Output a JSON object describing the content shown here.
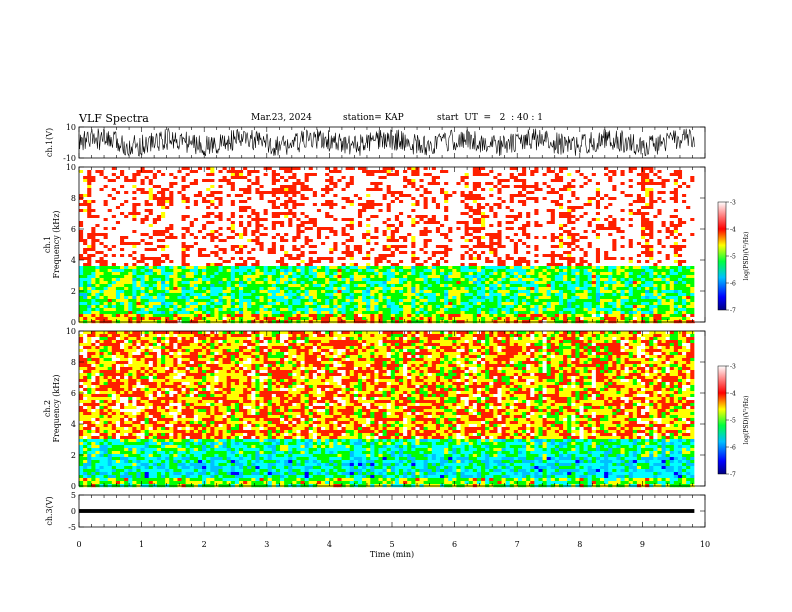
{
  "header": {
    "title": "VLF Spectra",
    "date": "Mar.23, 2024",
    "station": "station= KAP",
    "start": "start  UT  =   2  : 40 : 1"
  },
  "chart_data": [
    {
      "type": "line",
      "panel": "ch1-waveform",
      "ylabel": "ch.1(V)",
      "ylim": [
        -10,
        10
      ],
      "yticks": [
        10,
        -10
      ],
      "xlim": [
        0,
        10
      ],
      "data_end_min": 9.83,
      "color": "#000000",
      "description_values": "noisy voltage waveform oscillating roughly between -8 and 8 V"
    },
    {
      "type": "heatmap",
      "panel": "ch1-spectrogram",
      "ylabel": "ch.1  Frequency  (kHz)",
      "ylim": [
        0,
        10
      ],
      "yticks": [
        0,
        2,
        4,
        6,
        8,
        10
      ],
      "xlim": [
        0,
        10
      ],
      "data_end_min": 9.83,
      "colorbar": {
        "label": "log(PSD)(V²/Hz)",
        "range": [
          -7,
          -3
        ],
        "ticks": [
          -3,
          -4,
          -5,
          -6,
          -7
        ]
      },
      "bands": [
        {
          "from_khz": 0,
          "to_khz": 0.6,
          "level": -4.2
        },
        {
          "from_khz": 0.6,
          "to_khz": 3.6,
          "level": -4.8
        },
        {
          "from_khz": 3.6,
          "to_khz": 10,
          "level": -3.3
        }
      ]
    },
    {
      "type": "heatmap",
      "panel": "ch2-spectrogram",
      "ylabel": "ch.2  Frequency  (kHz)",
      "ylim": [
        0,
        10
      ],
      "yticks": [
        0,
        2,
        4,
        6,
        8,
        10
      ],
      "xlim": [
        0,
        10
      ],
      "data_end_min": 9.83,
      "colorbar": {
        "label": "log(PSD)(V²/Hz)",
        "range": [
          -7,
          -3
        ],
        "ticks": [
          -3,
          -4,
          -5,
          -6,
          -7
        ]
      },
      "bands": [
        {
          "from_khz": 0,
          "to_khz": 0.6,
          "level": -4.6
        },
        {
          "from_khz": 0.6,
          "to_khz": 1.9,
          "level": -5.3
        },
        {
          "from_khz": 1.9,
          "to_khz": 3.0,
          "level": -5.0
        },
        {
          "from_khz": 3.0,
          "to_khz": 10,
          "level": -4.0
        }
      ]
    },
    {
      "type": "line",
      "panel": "ch3-waveform",
      "ylabel": "ch.3(V)",
      "ylim": [
        -5,
        5
      ],
      "yticks": [
        5,
        0,
        -5
      ],
      "xlim": [
        0,
        10
      ],
      "data_end_min": 9.83,
      "values_band": [
        -0.6,
        0.6
      ],
      "color": "#000000"
    }
  ],
  "x_axis": {
    "label": "Time  (min)",
    "ticks": [
      0,
      1,
      2,
      3,
      4,
      5,
      6,
      7,
      8,
      9,
      10
    ]
  },
  "colors": {
    "colormap": [
      "#000080",
      "#0000ff",
      "#00b0ff",
      "#00ffff",
      "#00ff00",
      "#ffff00",
      "#ff0000",
      "#ffffff"
    ]
  }
}
